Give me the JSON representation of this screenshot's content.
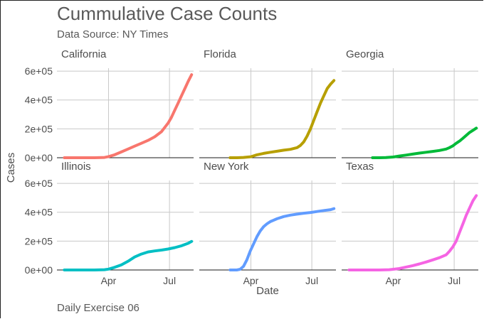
{
  "chart_data": {
    "type": "line",
    "title": "Cummulative Case Counts",
    "subtitle": "Data Source: NY Times",
    "caption": "Daily Exercise 06",
    "xlabel": "Date",
    "ylabel": "Cases",
    "x_ticks": [
      {
        "label": "Apr",
        "day": 91
      },
      {
        "label": "Jul",
        "day": 182
      }
    ],
    "y_ticks": [
      {
        "label": "0e+00",
        "value": 0
      },
      {
        "label": "2e+05",
        "value": 200000
      },
      {
        "label": "4e+05",
        "value": 400000
      },
      {
        "label": "6e+05",
        "value": 600000
      }
    ],
    "ylim": [
      0,
      620000
    ],
    "xlim": [
      14,
      218
    ],
    "x_unit": "day of year 2020",
    "grid": true,
    "layout": "facet 2x3, shared axes",
    "panels": [
      {
        "name": "California",
        "color": "#F8766D",
        "x": [
          25,
          40,
          55,
          70,
          85,
          91,
          100,
          110,
          120,
          130,
          140,
          150,
          160,
          170,
          175,
          180,
          185,
          190,
          195,
          200,
          205,
          210,
          215
        ],
        "y": [
          0,
          0,
          0,
          0,
          2000,
          8000,
          20000,
          40000,
          60000,
          80000,
          100000,
          120000,
          145000,
          180000,
          210000,
          240000,
          280000,
          330000,
          380000,
          430000,
          480000,
          530000,
          575000
        ]
      },
      {
        "name": "Florida",
        "color": "#B79F00",
        "x": [
          60,
          70,
          80,
          91,
          100,
          110,
          120,
          130,
          140,
          150,
          160,
          165,
          170,
          175,
          180,
          185,
          190,
          195,
          200,
          205,
          210,
          215
        ],
        "y": [
          0,
          0,
          2000,
          7000,
          20000,
          30000,
          38000,
          45000,
          52000,
          58000,
          70000,
          85000,
          110000,
          150000,
          200000,
          260000,
          320000,
          380000,
          430000,
          480000,
          510000,
          535000
        ]
      },
      {
        "name": "Georgia",
        "color": "#00BA38",
        "x": [
          60,
          70,
          80,
          91,
          100,
          110,
          120,
          130,
          140,
          150,
          160,
          170,
          175,
          180,
          185,
          190,
          195,
          200,
          205,
          210,
          215
        ],
        "y": [
          0,
          0,
          1000,
          5000,
          12000,
          18000,
          25000,
          32000,
          38000,
          44000,
          50000,
          60000,
          70000,
          82000,
          100000,
          115000,
          135000,
          155000,
          175000,
          190000,
          205000
        ]
      },
      {
        "name": "Illinois",
        "color": "#00BFC4",
        "x": [
          25,
          40,
          55,
          70,
          85,
          91,
          100,
          110,
          120,
          130,
          140,
          150,
          160,
          170,
          180,
          190,
          200,
          210,
          215
        ],
        "y": [
          0,
          0,
          0,
          0,
          2000,
          6000,
          18000,
          35000,
          60000,
          90000,
          110000,
          125000,
          132000,
          138000,
          145000,
          155000,
          168000,
          185000,
          198000
        ]
      },
      {
        "name": "New York",
        "color": "#619CFF",
        "x": [
          60,
          70,
          75,
          80,
          85,
          90,
          95,
          100,
          105,
          110,
          115,
          120,
          130,
          140,
          150,
          160,
          170,
          180,
          190,
          200,
          210,
          215
        ],
        "y": [
          0,
          0,
          5000,
          25000,
          70000,
          130000,
          180000,
          230000,
          270000,
          300000,
          320000,
          335000,
          355000,
          370000,
          380000,
          387000,
          393000,
          398000,
          405000,
          412000,
          418000,
          425000
        ]
      },
      {
        "name": "Texas",
        "color": "#F564E3",
        "x": [
          25,
          40,
          55,
          70,
          85,
          91,
          100,
          110,
          120,
          130,
          140,
          150,
          160,
          170,
          175,
          180,
          185,
          190,
          195,
          200,
          205,
          210,
          215
        ],
        "y": [
          0,
          0,
          0,
          0,
          2000,
          5000,
          10000,
          20000,
          30000,
          42000,
          55000,
          70000,
          85000,
          105000,
          130000,
          160000,
          200000,
          260000,
          320000,
          380000,
          430000,
          480000,
          515000
        ]
      }
    ]
  }
}
